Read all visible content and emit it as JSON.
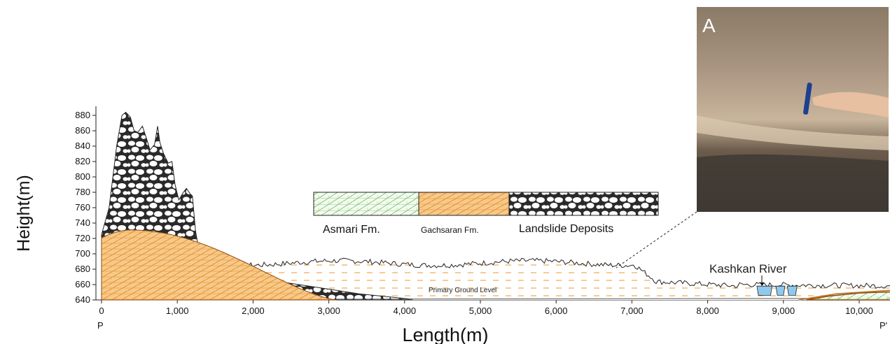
{
  "chart_data": {
    "type": "area",
    "ylabel": "Height(m)",
    "xlabel": "Length(m)",
    "xlim": [
      0,
      10800
    ],
    "ylim": [
      640,
      890
    ],
    "x_ticks": [
      0,
      1000,
      2000,
      3000,
      4000,
      5000,
      6000,
      7000,
      8000,
      9000,
      10000
    ],
    "x_tick_labels": [
      "0",
      "1,000",
      "2,000",
      "3,000",
      "4,000",
      "5,000",
      "6,000",
      "7,000",
      "8,000",
      "9,000",
      "10,000"
    ],
    "y_ticks": [
      640,
      660,
      680,
      700,
      720,
      740,
      760,
      780,
      800,
      820,
      840,
      860,
      880
    ],
    "y_tick_labels": [
      "640",
      "660",
      "680",
      "700",
      "720",
      "740",
      "760",
      "780",
      "800",
      "820",
      "840",
      "860",
      "880"
    ],
    "series": [
      {
        "name": "Gachsaran Fm.",
        "color": "#f0a040"
      },
      {
        "name": "Landslide Deposits",
        "color": "#222222"
      },
      {
        "name": "Asmari Fm.",
        "color": "#4caf50"
      }
    ],
    "start_label": "P",
    "end_label": "P'",
    "annotations": {
      "primary_ground_level": "Primary Ground Level",
      "river": "Kashkan River"
    },
    "photo_label": "A"
  }
}
